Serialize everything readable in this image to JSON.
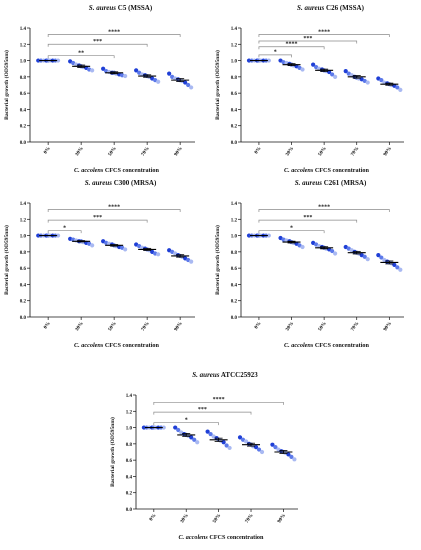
{
  "chart_data": [
    {
      "type": "scatter",
      "title_italic": "S. aureus",
      "title_rest": "C5 (MSSA)",
      "xlabel_italic": "C. accolens",
      "xlabel_rest": "CFCS concentration",
      "ylabel": "Bacterial growth (OD595nm)",
      "categories": [
        "0%",
        "30%",
        "50%",
        "70%",
        "90%"
      ],
      "ylim": [
        0.0,
        1.4
      ],
      "yticks": [
        "0.0",
        "0.2",
        "0.4",
        "0.6",
        "0.8",
        "1.0",
        "1.2",
        "1.4"
      ],
      "means": [
        1.0,
        0.93,
        0.85,
        0.81,
        0.76
      ],
      "points": [
        [
          1.0,
          1.0,
          1.0,
          1.0,
          1.0,
          1.0,
          1.0,
          1.0,
          1.0
        ],
        [
          0.99,
          0.97,
          0.95,
          0.94,
          0.93,
          0.92,
          0.91,
          0.89,
          0.88
        ],
        [
          0.9,
          0.87,
          0.86,
          0.85,
          0.85,
          0.84,
          0.83,
          0.82,
          0.81
        ],
        [
          0.88,
          0.85,
          0.83,
          0.82,
          0.81,
          0.8,
          0.78,
          0.76,
          0.74
        ],
        [
          0.84,
          0.8,
          0.78,
          0.77,
          0.76,
          0.75,
          0.73,
          0.7,
          0.67
        ]
      ],
      "sem": [
        0.0,
        0.015,
        0.012,
        0.015,
        0.018
      ],
      "significance": [
        {
          "label": "**",
          "to": "50%",
          "y": 1.06
        },
        {
          "label": "***",
          "to": "70%",
          "y": 1.2
        },
        {
          "label": "****",
          "to": "90%",
          "y": 1.32
        }
      ]
    },
    {
      "type": "scatter",
      "title_italic": "S. aureus",
      "title_rest": "C26 (MSSA)",
      "xlabel_italic": "C. accolens",
      "xlabel_rest": "CFCS concentration",
      "ylabel": "Bacterial growth (OD595nm)",
      "categories": [
        "0%",
        "30%",
        "50%",
        "70%",
        "90%"
      ],
      "ylim": [
        0.0,
        1.4
      ],
      "yticks": [
        "0.0",
        "0.2",
        "0.4",
        "0.6",
        "0.8",
        "1.0",
        "1.2",
        "1.4"
      ],
      "means": [
        1.0,
        0.95,
        0.88,
        0.8,
        0.71
      ],
      "points": [
        [
          1.0,
          1.0,
          1.0,
          1.0,
          1.0,
          1.0,
          1.0,
          1.0,
          1.0
        ],
        [
          1.0,
          0.98,
          0.97,
          0.96,
          0.95,
          0.94,
          0.93,
          0.91,
          0.89
        ],
        [
          0.95,
          0.92,
          0.9,
          0.89,
          0.88,
          0.87,
          0.86,
          0.83,
          0.8
        ],
        [
          0.87,
          0.84,
          0.82,
          0.8,
          0.79,
          0.78,
          0.77,
          0.75,
          0.73
        ],
        [
          0.78,
          0.76,
          0.73,
          0.72,
          0.71,
          0.7,
          0.69,
          0.67,
          0.64
        ]
      ],
      "sem": [
        0.0,
        0.012,
        0.015,
        0.016,
        0.013
      ],
      "significance": [
        {
          "label": "*",
          "to": "30%",
          "y": 1.07
        },
        {
          "label": "****",
          "to": "50%",
          "y": 1.17
        },
        {
          "label": "***",
          "to": "70%",
          "y": 1.24
        },
        {
          "label": "****",
          "to": "90%",
          "y": 1.32
        }
      ]
    },
    {
      "type": "scatter",
      "title_italic": "S. aureus",
      "title_rest": "C300 (MRSA)",
      "xlabel_italic": "C. accolens",
      "xlabel_rest": "CFCS concentration",
      "ylabel": "Bacterial growth (OD595nm)",
      "categories": [
        "0%",
        "30%",
        "50%",
        "70%",
        "90%"
      ],
      "ylim": [
        0.0,
        1.4
      ],
      "yticks": [
        "0.0",
        "0.2",
        "0.4",
        "0.6",
        "0.8",
        "1.0",
        "1.2",
        "1.4"
      ],
      "means": [
        1.0,
        0.93,
        0.88,
        0.83,
        0.75
      ],
      "points": [
        [
          1.0,
          1.0,
          1.0,
          1.0,
          1.0,
          1.0,
          1.0,
          1.0,
          1.0
        ],
        [
          0.96,
          0.95,
          0.94,
          0.93,
          0.93,
          0.92,
          0.91,
          0.9,
          0.88
        ],
        [
          0.93,
          0.91,
          0.9,
          0.89,
          0.88,
          0.87,
          0.86,
          0.85,
          0.83
        ],
        [
          0.89,
          0.87,
          0.85,
          0.84,
          0.83,
          0.82,
          0.8,
          0.78,
          0.77
        ],
        [
          0.82,
          0.8,
          0.78,
          0.76,
          0.75,
          0.74,
          0.72,
          0.7,
          0.68
        ]
      ],
      "sem": [
        0.0,
        0.008,
        0.01,
        0.013,
        0.015
      ],
      "significance": [
        {
          "label": "*",
          "to": "30%",
          "y": 1.06
        },
        {
          "label": "***",
          "to": "70%",
          "y": 1.19
        },
        {
          "label": "****",
          "to": "90%",
          "y": 1.32
        }
      ]
    },
    {
      "type": "scatter",
      "title_italic": "S. aureus",
      "title_rest": "C261 (MRSA)",
      "xlabel_italic": "C. accolens",
      "xlabel_rest": "CFCS concentration",
      "ylabel": "Bacterial growth (OD595nm)",
      "categories": [
        "0%",
        "30%",
        "50%",
        "70%",
        "90%"
      ],
      "ylim": [
        0.0,
        1.4
      ],
      "yticks": [
        "0.0",
        "0.2",
        "0.4",
        "0.6",
        "0.8",
        "1.0",
        "1.2",
        "1.4"
      ],
      "means": [
        1.0,
        0.92,
        0.85,
        0.79,
        0.67
      ],
      "points": [
        [
          1.0,
          1.0,
          1.0,
          1.0,
          1.0,
          1.0,
          1.0,
          1.0,
          1.0
        ],
        [
          0.97,
          0.95,
          0.94,
          0.93,
          0.92,
          0.91,
          0.9,
          0.88,
          0.86
        ],
        [
          0.91,
          0.89,
          0.87,
          0.86,
          0.85,
          0.84,
          0.83,
          0.81,
          0.78
        ],
        [
          0.86,
          0.84,
          0.82,
          0.8,
          0.79,
          0.78,
          0.76,
          0.74,
          0.71
        ],
        [
          0.76,
          0.73,
          0.7,
          0.68,
          0.67,
          0.66,
          0.64,
          0.61,
          0.58
        ]
      ],
      "sem": [
        0.0,
        0.011,
        0.013,
        0.016,
        0.018
      ],
      "significance": [
        {
          "label": "*",
          "to": "50%",
          "y": 1.06
        },
        {
          "label": "***",
          "to": "70%",
          "y": 1.19
        },
        {
          "label": "****",
          "to": "90%",
          "y": 1.32
        }
      ]
    },
    {
      "type": "scatter",
      "title_italic": "S. aureus",
      "title_rest": "ATCC25923",
      "xlabel_italic": "C. accolens",
      "xlabel_rest": "CFCS concentration",
      "ylabel": "Bacterial growth (OD595nm)",
      "categories": [
        "0%",
        "30%",
        "50%",
        "70%",
        "90%"
      ],
      "ylim": [
        0.0,
        1.4
      ],
      "yticks": [
        "0.0",
        "0.2",
        "0.4",
        "0.6",
        "0.8",
        "1.0",
        "1.2",
        "1.4"
      ],
      "means": [
        1.0,
        0.91,
        0.85,
        0.79,
        0.7
      ],
      "points": [
        [
          1.0,
          1.0,
          1.0,
          1.0,
          1.0,
          1.0,
          1.0,
          1.0,
          1.0
        ],
        [
          1.0,
          0.97,
          0.94,
          0.92,
          0.91,
          0.9,
          0.88,
          0.85,
          0.82
        ],
        [
          0.95,
          0.92,
          0.89,
          0.87,
          0.85,
          0.84,
          0.82,
          0.78,
          0.75
        ],
        [
          0.88,
          0.85,
          0.83,
          0.8,
          0.79,
          0.77,
          0.76,
          0.73,
          0.7
        ],
        [
          0.79,
          0.76,
          0.73,
          0.71,
          0.7,
          0.69,
          0.67,
          0.64,
          0.61
        ]
      ],
      "sem": [
        0.0,
        0.018,
        0.02,
        0.018,
        0.018
      ],
      "significance": [
        {
          "label": "*",
          "to": "50%",
          "y": 1.06
        },
        {
          "label": "***",
          "to": "70%",
          "y": 1.19
        },
        {
          "label": "****",
          "to": "90%",
          "y": 1.31
        }
      ]
    }
  ],
  "colors": {
    "dark": "#1f3fd6",
    "medium": "#5c79ea",
    "light": "#a9b9f2",
    "bracket": "#8a8a8a",
    "axis": "#111111"
  }
}
